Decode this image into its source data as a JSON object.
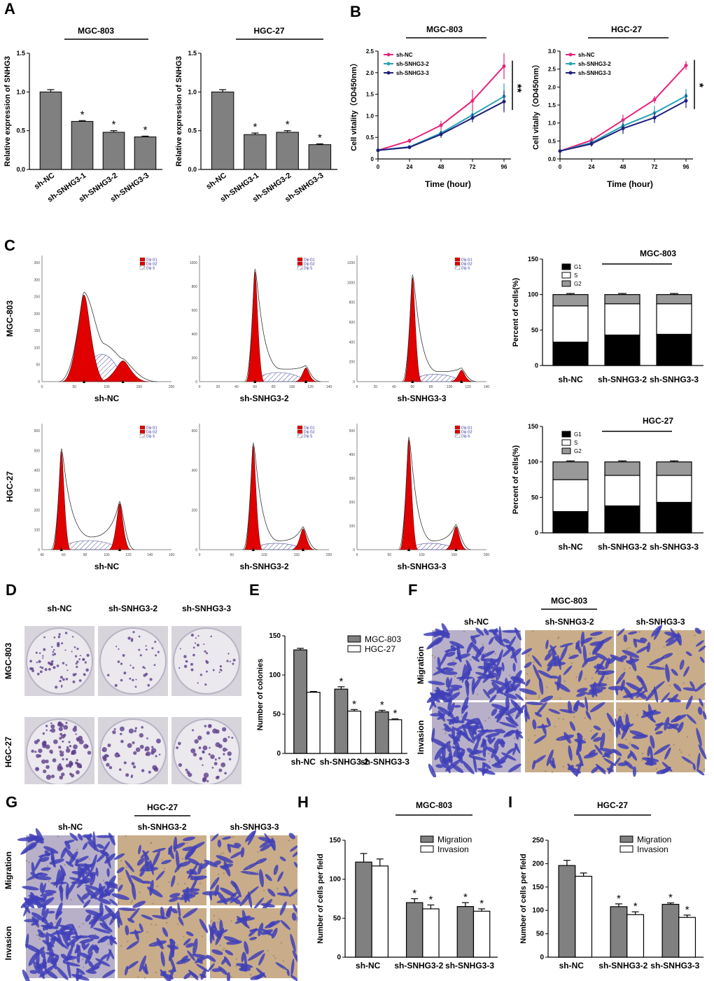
{
  "panel_labels": {
    "A": "A",
    "B": "B",
    "C": "C",
    "D": "D",
    "E": "E",
    "F": "F",
    "G": "G",
    "H": "H",
    "I": "I"
  },
  "colors": {
    "gray": "#808080",
    "pink": "#e8247a",
    "teal": "#2aa3b5",
    "navy": "#1f1f7a",
    "red": "#e00000",
    "hatch": "#4a4a9a",
    "stain": "#4040b8",
    "tissue": "#c9ad8a"
  },
  "chart_data": [
    {
      "id": "A1",
      "type": "bar",
      "title": "MGC-803",
      "ylabel": "Relative expression of SNHG3",
      "categories": [
        "sh-NC",
        "sh-SNHG3-1",
        "sh-SNHG3-2",
        "sh-SNHG3-3"
      ],
      "values": [
        1.0,
        0.62,
        0.48,
        0.42
      ],
      "errors": [
        0.03,
        0.01,
        0.02,
        0.01
      ],
      "stars": [
        "",
        "*",
        "*",
        "*"
      ],
      "ylim": [
        0,
        1.5
      ],
      "yticks": [
        "0.0",
        "0.5",
        "1.0",
        "1.5"
      ]
    },
    {
      "id": "A2",
      "type": "bar",
      "title": "HGC-27",
      "ylabel": "Relative expression of SNHG3",
      "categories": [
        "sh-NC",
        "sh-SNHG3-1",
        "sh-SNHG3-2",
        "sh-SNHG3-3"
      ],
      "values": [
        1.0,
        0.45,
        0.48,
        0.32
      ],
      "errors": [
        0.03,
        0.02,
        0.02,
        0.01
      ],
      "stars": [
        "",
        "*",
        "*",
        "*"
      ],
      "ylim": [
        0,
        1.5
      ],
      "yticks": [
        "0.0",
        "0.5",
        "1.0",
        "1.5"
      ]
    },
    {
      "id": "B1",
      "type": "line",
      "title": "MGC-803",
      "xlabel": "Time (hour)",
      "ylabel": "Cell vitality（OD450nm）",
      "x": [
        0,
        24,
        48,
        72,
        96
      ],
      "xticks": [
        "0",
        "24",
        "48",
        "72",
        "96"
      ],
      "ylim": [
        0,
        2.5
      ],
      "yticks": [
        "0",
        "0.5",
        "1.0",
        "1.5",
        "2.0",
        "2.5"
      ],
      "significance": "**",
      "series": [
        {
          "name": "sh-NC",
          "values": [
            0.2,
            0.42,
            0.78,
            1.35,
            2.15
          ],
          "errors": [
            0.02,
            0.05,
            0.1,
            0.25,
            0.3
          ]
        },
        {
          "name": "sh-SNHG3-2",
          "values": [
            0.2,
            0.28,
            0.6,
            1.02,
            1.45
          ],
          "errors": [
            0.02,
            0.03,
            0.08,
            0.1,
            0.3
          ]
        },
        {
          "name": "sh-SNHG3-3",
          "values": [
            0.2,
            0.27,
            0.57,
            0.95,
            1.33
          ],
          "errors": [
            0.02,
            0.03,
            0.08,
            0.1,
            0.25
          ]
        }
      ]
    },
    {
      "id": "B2",
      "type": "line",
      "title": "HGC-27",
      "xlabel": "Time (hour)",
      "ylabel": "Cell vitally（OD450nm）",
      "x": [
        0,
        24,
        48,
        72,
        96
      ],
      "xticks": [
        "0",
        "24",
        "48",
        "72",
        "96"
      ],
      "ylim": [
        0,
        3.0
      ],
      "yticks": [
        "0.0",
        "0.5",
        "1.0",
        "1.5",
        "2.0",
        "2.5",
        "3.0"
      ],
      "significance": "*",
      "series": [
        {
          "name": "sh-NC",
          "values": [
            0.22,
            0.52,
            1.08,
            1.65,
            2.6
          ],
          "errors": [
            0.02,
            0.08,
            0.15,
            0.1,
            0.12
          ]
        },
        {
          "name": "sh-SNHG3-2",
          "values": [
            0.22,
            0.45,
            0.92,
            1.28,
            1.75
          ],
          "errors": [
            0.02,
            0.08,
            0.15,
            0.2,
            0.2
          ]
        },
        {
          "name": "sh-SNHG3-3",
          "values": [
            0.22,
            0.42,
            0.85,
            1.15,
            1.62
          ],
          "errors": [
            0.02,
            0.08,
            0.15,
            0.15,
            0.2
          ]
        }
      ]
    },
    {
      "id": "C1",
      "type": "bar",
      "subtype": "stacked",
      "title": "MGC-803",
      "ylabel": "Percent of cells(%)",
      "categories": [
        "sh-NC",
        "sh-SNHG3-2",
        "sh-SNHG3-3"
      ],
      "ylim": [
        0,
        150
      ],
      "yticks": [
        "0",
        "50",
        "100",
        "150"
      ],
      "series": [
        {
          "name": "G1",
          "values": [
            33,
            43,
            44
          ]
        },
        {
          "name": "S",
          "values": [
            51,
            44,
            43
          ]
        },
        {
          "name": "G2",
          "values": [
            16,
            13,
            13
          ]
        }
      ]
    },
    {
      "id": "C2",
      "type": "bar",
      "subtype": "stacked",
      "title": "HGC-27",
      "ylabel": "Percent of cells(%)",
      "categories": [
        "sh-NC",
        "sh-SNHG3-2",
        "sh-SNHG3-3"
      ],
      "ylim": [
        0,
        150
      ],
      "yticks": [
        "0",
        "50",
        "100",
        "150"
      ],
      "series": [
        {
          "name": "G1",
          "values": [
            30,
            38,
            43
          ]
        },
        {
          "name": "S",
          "values": [
            45,
            43,
            38
          ]
        },
        {
          "name": "G2",
          "values": [
            25,
            19,
            19
          ]
        }
      ]
    },
    {
      "id": "E",
      "type": "bar",
      "ylabel": "Number of colonies",
      "categories": [
        "sh-NC",
        "sh-SNHG3-2",
        "sh-SNHG3-3"
      ],
      "ylim": [
        0,
        150
      ],
      "yticks": [
        "0",
        "50",
        "100",
        "150"
      ],
      "series": [
        {
          "name": "MGC-803",
          "values": [
            132,
            82,
            53
          ],
          "errors": [
            2,
            3,
            2
          ],
          "stars": [
            "",
            "*",
            "*"
          ]
        },
        {
          "name": "HGC-27",
          "values": [
            78,
            54,
            43
          ],
          "errors": [
            1,
            2,
            1
          ],
          "stars": [
            "",
            "*",
            "*"
          ]
        }
      ]
    },
    {
      "id": "H",
      "type": "bar",
      "title": "MGC-803",
      "ylabel": "Number of cells per field",
      "categories": [
        "sh-NC",
        "sh-SNHG3-2",
        "sh-SNHG3-3"
      ],
      "ylim": [
        0,
        150
      ],
      "yticks": [
        "0",
        "50",
        "100",
        "150"
      ],
      "series": [
        {
          "name": "Migration",
          "values": [
            122,
            70,
            65
          ],
          "errors": [
            11,
            5,
            5
          ],
          "stars": [
            "",
            "*",
            "*"
          ]
        },
        {
          "name": "Invasion",
          "values": [
            117,
            62,
            59
          ],
          "errors": [
            9,
            5,
            3
          ],
          "stars": [
            "",
            "*",
            "*"
          ]
        }
      ]
    },
    {
      "id": "I",
      "type": "bar",
      "title": "HGC-27",
      "ylabel": "Number of cells per field",
      "categories": [
        "sh-NC",
        "sh-SNHG3-2",
        "sh-SNHG3-3"
      ],
      "ylim": [
        0,
        250
      ],
      "yticks": [
        "0",
        "50",
        "100",
        "150",
        "200",
        "250"
      ],
      "series": [
        {
          "name": "Migration",
          "values": [
            196,
            108,
            113
          ],
          "errors": [
            11,
            6,
            3
          ],
          "stars": [
            "",
            "*",
            "*"
          ]
        },
        {
          "name": "Invasion",
          "values": [
            173,
            91,
            85
          ],
          "errors": [
            7,
            6,
            5
          ],
          "stars": [
            "",
            "*",
            "*"
          ]
        }
      ]
    }
  ],
  "flow": {
    "legend": [
      "Dip G1",
      "Dip G2",
      "Dip S"
    ],
    "rows": [
      {
        "name": "MGC-803",
        "plots": [
          {
            "label": "sh-NC",
            "yticks": [
              "0",
              "50",
              "100",
              "150",
              "200",
              "250",
              "300",
              "350"
            ],
            "xticks": [
              "0",
              "50",
              "100",
              "150",
              "200"
            ],
            "g1": 65,
            "g2": 125,
            "g1h": 0.75,
            "g2h": 0.18,
            "sh": 0.3
          },
          {
            "label": "sh-SNHG3-2",
            "yticks": [
              "0",
              "200",
              "400",
              "600",
              "800",
              "1000"
            ],
            "xticks": [
              "0",
              "20",
              "40",
              "60",
              "80",
              "100",
              "120",
              "140"
            ],
            "g1": 60,
            "g2": 115,
            "g1h": 0.95,
            "g2h": 0.12,
            "sh": 0.1
          },
          {
            "label": "sh-SNHG3-3",
            "yticks": [
              "0",
              "200",
              "400",
              "600",
              "800",
              "1000",
              "1200"
            ],
            "xticks": [
              "0",
              "20",
              "40",
              "60",
              "80",
              "100",
              "120",
              "140"
            ],
            "g1": 60,
            "g2": 113,
            "g1h": 0.9,
            "g2h": 0.1,
            "sh": 0.08
          }
        ]
      },
      {
        "name": "HGC-27",
        "plots": [
          {
            "label": "sh-NC",
            "yticks": [
              "0",
              "100",
              "200",
              "300",
              "400",
              "500",
              "600"
            ],
            "xticks": [
              "40",
              "60",
              "80",
              "100",
              "120",
              "140",
              "160"
            ],
            "g1": 58,
            "g2": 112,
            "g1h": 0.85,
            "g2h": 0.4,
            "sh": 0.1
          },
          {
            "label": "sh-SNHG3-2",
            "yticks": [
              "0",
              "200",
              "400",
              "600"
            ],
            "xticks": [
              "0",
              "50",
              "100",
              "150",
              "200"
            ],
            "g1": 83,
            "g2": 160,
            "g1h": 0.9,
            "g2h": 0.18,
            "sh": 0.07
          },
          {
            "label": "sh-SNHG3-3",
            "yticks": [
              "0",
              "100",
              "200",
              "300",
              "400",
              "500"
            ],
            "xticks": [
              "0",
              "50",
              "100",
              "150",
              "200"
            ],
            "g1": 80,
            "g2": 153,
            "g1h": 0.95,
            "g2h": 0.2,
            "sh": 0.07
          }
        ]
      }
    ]
  },
  "colony": {
    "cols": [
      "sh-NC",
      "sh-SNHG3-2",
      "sh-SNHG3-3"
    ],
    "rows": [
      "MGC-803",
      "HGC-27"
    ]
  },
  "transwellF": {
    "title": "MGC-803",
    "cols": [
      "sh-NC",
      "sh-SNHG3-2",
      "sh-SNHG3-3"
    ],
    "rows": [
      "Migration",
      "Invasion"
    ]
  },
  "transwellG": {
    "title": "HGC-27",
    "cols": [
      "sh-NC",
      "sh-SNHG3-2",
      "sh-SNHG3-3"
    ],
    "rows": [
      "Migration",
      "Invasion"
    ]
  }
}
